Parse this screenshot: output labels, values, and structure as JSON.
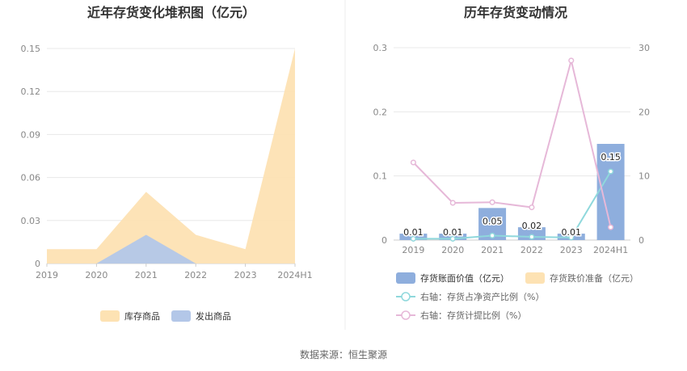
{
  "chart_data": [
    {
      "type": "area",
      "title": "近年存货变化堆积图（亿元）",
      "categories": [
        "2019",
        "2020",
        "2021",
        "2022",
        "2023",
        "2024H1"
      ],
      "ylim": [
        0,
        0.15
      ],
      "yticks": [
        "0",
        "0.03",
        "0.06",
        "0.09",
        "0.12",
        "0.15"
      ],
      "ytick_values": [
        0,
        0.03,
        0.06,
        0.09,
        0.12,
        0.15
      ],
      "stacked": true,
      "legend_placement": "bottom",
      "series": [
        {
          "name": "库存商品",
          "color": "#fde2b3",
          "values": [
            0.01,
            0.01,
            0.03,
            0.02,
            0.01,
            0.15
          ]
        },
        {
          "name": "发出商品",
          "color": "#b3c7e8",
          "values": [
            0,
            0,
            0.02,
            0,
            0,
            0
          ]
        }
      ]
    },
    {
      "type": "bar",
      "title": "历年存货变动情况",
      "categories": [
        "2019",
        "2020",
        "2021",
        "2022",
        "2023",
        "2024H1"
      ],
      "ylim": [
        0,
        0.3
      ],
      "yticks": [
        "0",
        "0.1",
        "0.2",
        "0.3"
      ],
      "ytick_values": [
        0,
        0.1,
        0.2,
        0.3
      ],
      "y2lim": [
        0,
        30
      ],
      "y2ticks": [
        "0",
        "10",
        "20",
        "30"
      ],
      "y2tick_values": [
        0,
        10,
        20,
        30
      ],
      "legend_placement": "bottom",
      "series": [
        {
          "name": "存货账面价值（亿元）",
          "type": "bar",
          "axis": "left",
          "color": "#8eaedd",
          "values": [
            0.01,
            0.01,
            0.05,
            0.02,
            0.01,
            0.15
          ],
          "labels": [
            "0.01",
            "0.01",
            "0.05",
            "0.02",
            "0.01",
            "0.15"
          ]
        },
        {
          "name": "存货跌价准备（亿元）",
          "type": "bar",
          "axis": "left",
          "color": "#fde2b3",
          "values": [
            0,
            0,
            0,
            0,
            0,
            0
          ]
        },
        {
          "name": "右轴：存货占净资产比例（%）",
          "type": "line",
          "axis": "right",
          "color": "#8fd8dc",
          "values": [
            0.2,
            0.2,
            0.7,
            0.5,
            0.4,
            10.7
          ]
        },
        {
          "name": "右轴：存货计提比例（%）",
          "type": "line",
          "axis": "right",
          "color": "#e6b8d8",
          "values": [
            12.1,
            5.8,
            5.9,
            5.1,
            28.0,
            2.0
          ]
        }
      ]
    }
  ],
  "footer": {
    "source": "数据来源：恒生聚源"
  }
}
